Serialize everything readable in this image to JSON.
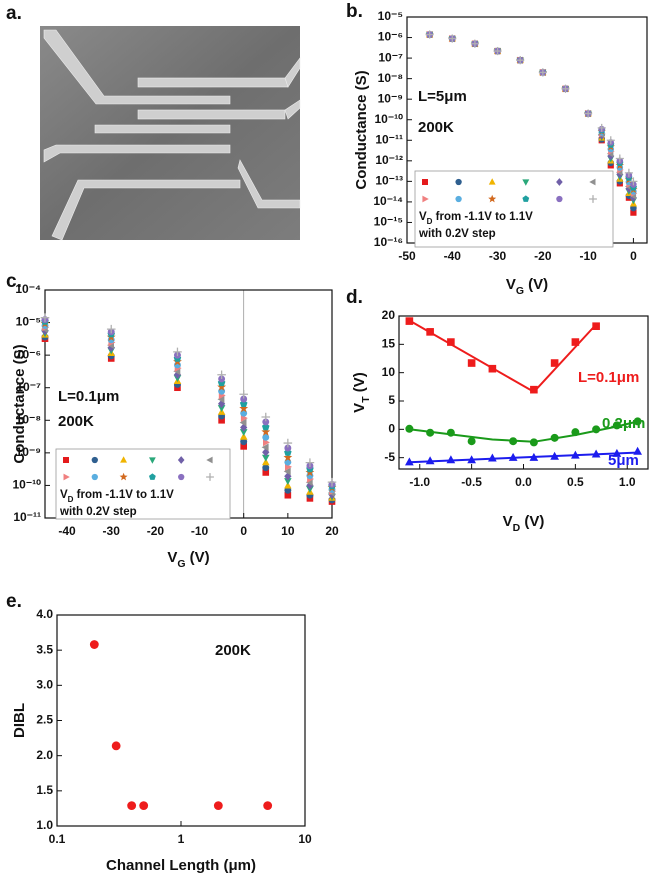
{
  "chart_data": [
    {
      "type": "image",
      "panel_label": "a."
    },
    {
      "type": "scatter",
      "panel_label": "b.",
      "ylog": true,
      "xlabel": [
        "V",
        "G",
        " (V)"
      ],
      "ylabel": "Conductance (S)",
      "xlim": [
        -50,
        3
      ],
      "ylim": [
        1e-16,
        1e-05
      ],
      "xticks": [
        -50,
        -40,
        -30,
        -20,
        -10,
        0
      ],
      "yticks": [
        {
          "value": 1e-16,
          "label": "10⁻¹⁶"
        },
        {
          "value": 1e-15,
          "label": "10⁻¹⁵"
        },
        {
          "value": 1e-14,
          "label": "10⁻¹⁴"
        },
        {
          "value": 1e-13,
          "label": "10⁻¹³"
        },
        {
          "value": 1e-12,
          "label": "10⁻¹²"
        },
        {
          "value": 1e-11,
          "label": "10⁻¹¹"
        },
        {
          "value": 1e-10,
          "label": "10⁻¹⁰"
        },
        {
          "value": 1e-09,
          "label": "10⁻⁹"
        },
        {
          "value": 1e-08,
          "label": "10⁻⁸"
        },
        {
          "value": 1e-07,
          "label": "10⁻⁷"
        },
        {
          "value": 1e-06,
          "label": "10⁻⁶"
        },
        {
          "value": 1e-05,
          "label": "10⁻⁵"
        }
      ],
      "annotations": [
        "L=5μm",
        "200K"
      ],
      "legend_text": [
        [
          "V",
          "D",
          " from -1.1V to 1.1V"
        ],
        "with 0.2V step"
      ],
      "x": [
        -45,
        -40,
        -35,
        -30,
        -25,
        -20,
        -15,
        -10,
        -7,
        -5,
        -3,
        -1,
        0
      ],
      "series": [
        {
          "color": "#e41a1c",
          "marker": "square",
          "values": [
            1.4e-06,
            8.9e-07,
            5e-07,
            2.2e-07,
            7.9e-08,
            2e-08,
            3.2e-09,
            2e-10,
            1e-11,
            6e-13,
            8e-14,
            1.6e-14,
            3e-15
          ]
        },
        {
          "color": "#2f5f8f",
          "marker": "circle",
          "values": [
            1.4e-06,
            8.9e-07,
            5e-07,
            2.2e-07,
            7.9e-08,
            2e-08,
            3.2e-09,
            2e-10,
            1.1e-11,
            8e-13,
            1e-13,
            2e-14,
            5e-15
          ]
        },
        {
          "color": "#f0b400",
          "marker": "triangle-up",
          "values": [
            1.4e-06,
            8.9e-07,
            5e-07,
            2.2e-07,
            7.9e-08,
            2e-08,
            3.2e-09,
            2e-10,
            1.3e-11,
            1e-12,
            1.3e-13,
            2.6e-14,
            8e-15
          ]
        },
        {
          "color": "#2aa87a",
          "marker": "triangle-down",
          "values": [
            1.4e-06,
            8.9e-07,
            5e-07,
            2.2e-07,
            7.9e-08,
            2e-08,
            3.2e-09,
            2e-10,
            1.5e-11,
            1.3e-12,
            1.7e-13,
            3.4e-14,
            1.2e-14
          ]
        },
        {
          "color": "#7060a8",
          "marker": "diamond",
          "values": [
            1.4e-06,
            8.9e-07,
            5e-07,
            2.2e-07,
            7.9e-08,
            2e-08,
            3.2e-09,
            2e-10,
            1.7e-11,
            1.7e-12,
            2.2e-13,
            4.4e-14,
            1.6e-14
          ]
        },
        {
          "color": "#909090",
          "marker": "triangle-left",
          "values": [
            1.4e-06,
            8.9e-07,
            5e-07,
            2.2e-07,
            7.9e-08,
            2e-08,
            3.2e-09,
            2e-10,
            1.9e-11,
            2.2e-12,
            2.8e-13,
            5.6e-14,
            2e-14
          ]
        },
        {
          "color": "#f08080",
          "marker": "triangle-right",
          "values": [
            1.4e-06,
            8.9e-07,
            5e-07,
            2.2e-07,
            7.9e-08,
            2e-08,
            3.2e-09,
            2e-10,
            2.1e-11,
            2.9e-12,
            3.6e-13,
            7.2e-14,
            2.6e-14
          ]
        },
        {
          "color": "#5aaee0",
          "marker": "circle",
          "values": [
            1.4e-06,
            8.9e-07,
            5e-07,
            2.2e-07,
            7.9e-08,
            2e-08,
            3.2e-09,
            2e-10,
            2.4e-11,
            3.7e-12,
            4.7e-13,
            9.3e-14,
            3.2e-14
          ]
        },
        {
          "color": "#d2691e",
          "marker": "star",
          "values": [
            1.4e-06,
            8.9e-07,
            5e-07,
            2.2e-07,
            7.9e-08,
            2e-08,
            3.2e-09,
            2e-10,
            2.7e-11,
            4.8e-12,
            6e-13,
            1.2e-13,
            4e-14
          ]
        },
        {
          "color": "#20a0a0",
          "marker": "pentagon",
          "values": [
            1.4e-06,
            8.9e-07,
            5e-07,
            2.2e-07,
            7.9e-08,
            2e-08,
            3.2e-09,
            2e-10,
            3.1e-11,
            6.1e-12,
            7.8e-13,
            1.5e-13,
            5e-14
          ]
        },
        {
          "color": "#8a70c0",
          "marker": "circle",
          "values": [
            1.4e-06,
            8.9e-07,
            5e-07,
            2.2e-07,
            7.9e-08,
            2e-08,
            3.2e-09,
            2e-10,
            3.5e-11,
            7.9e-12,
            1e-12,
            2e-13,
            7e-14
          ]
        },
        {
          "color": "#b0b0b0",
          "marker": "plus",
          "values": [
            1.4e-06,
            8.9e-07,
            5e-07,
            2.2e-07,
            7.9e-08,
            2e-08,
            3.2e-09,
            2e-10,
            4e-11,
            1e-11,
            1.3e-12,
            2.6e-13,
            1e-13
          ]
        }
      ]
    },
    {
      "type": "scatter",
      "panel_label": "c.",
      "ylog": true,
      "zero_line": true,
      "xlabel": [
        "V",
        "G",
        " (V)"
      ],
      "ylabel": "Conductance (S)",
      "xlim": [
        -45,
        20
      ],
      "ylim": [
        1e-11,
        0.0001
      ],
      "xticks": [
        -40,
        -30,
        -20,
        -10,
        0,
        10,
        20
      ],
      "yticks": [
        {
          "value": 1e-11,
          "label": "10⁻¹¹"
        },
        {
          "value": 1e-10,
          "label": "10⁻¹⁰"
        },
        {
          "value": 1e-09,
          "label": "10⁻⁹"
        },
        {
          "value": 1e-08,
          "label": "10⁻⁸"
        },
        {
          "value": 1e-07,
          "label": "10⁻⁷"
        },
        {
          "value": 1e-06,
          "label": "10⁻⁶"
        },
        {
          "value": 1e-05,
          "label": "10⁻⁵"
        },
        {
          "value": 0.0001,
          "label": "10⁻⁴"
        }
      ],
      "annotations": [
        "L=0.1μm",
        "200K"
      ],
      "legend_text": [
        [
          "V",
          "D",
          " from -1.1V to 1.1V"
        ],
        "with 0.2V step"
      ],
      "x": [
        -45,
        -30,
        -15,
        -5,
        0,
        5,
        10,
        15,
        20
      ],
      "series": [
        {
          "color": "#e41a1c",
          "marker": "square",
          "values": [
            3.2e-06,
            7.9e-07,
            1e-07,
            1e-08,
            1.58e-09,
            2.5e-10,
            5e-11,
            4e-11,
            3.2e-11
          ]
        },
        {
          "color": "#2f5f8f",
          "marker": "circle",
          "values": [
            3.6e-06,
            9.5e-07,
            1.26e-07,
            1.35e-08,
            2.2e-09,
            3.5e-10,
            7.1e-11,
            5e-11,
            3.6e-11
          ]
        },
        {
          "color": "#f0b400",
          "marker": "triangle-up",
          "values": [
            4.2e-06,
            1.15e-06,
            1.58e-07,
            1.78e-08,
            3.1e-09,
            5.1e-10,
            9.8e-11,
            6.3e-11,
            4.1e-11
          ]
        },
        {
          "color": "#2aa87a",
          "marker": "triangle-down",
          "values": [
            4.8e-06,
            1.41e-06,
            2e-07,
            2.4e-08,
            4.4e-09,
            7.2e-10,
            1.38e-10,
            7.9e-11,
            4.6e-11
          ]
        },
        {
          "color": "#7060a8",
          "marker": "diamond",
          "values": [
            5.5e-06,
            1.7e-06,
            2.5e-07,
            3.2e-08,
            6e-09,
            1.05e-09,
            1.9e-10,
            1e-10,
            5.2e-11
          ]
        },
        {
          "color": "#909090",
          "marker": "triangle-left",
          "values": [
            6.3e-06,
            2.04e-06,
            3.2e-07,
            4.4e-08,
            8.5e-09,
            1.48e-09,
            2.7e-10,
            1.26e-10,
            5.9e-11
          ]
        },
        {
          "color": "#f08080",
          "marker": "triangle-right",
          "values": [
            7.1e-06,
            2.45e-06,
            4e-07,
            5.8e-08,
            1.17e-08,
            2.1e-09,
            3.7e-10,
            1.58e-10,
            6.6e-11
          ]
        },
        {
          "color": "#5aaee0",
          "marker": "circle",
          "values": [
            8.1e-06,
            2.95e-06,
            5e-07,
            7.8e-08,
            1.66e-08,
            3e-09,
            5.2e-10,
            2e-10,
            7.5e-11
          ]
        },
        {
          "color": "#d2691e",
          "marker": "star",
          "values": [
            9.3e-06,
            3.55e-06,
            6.3e-07,
            1.05e-07,
            2.3e-08,
            4.4e-09,
            7.2e-10,
            2.5e-10,
            8.5e-11
          ]
        },
        {
          "color": "#20a0a0",
          "marker": "pentagon",
          "values": [
            1.07e-05,
            4.4e-06,
            7.9e-07,
            1.41e-07,
            3.2e-08,
            6.2e-09,
            1.02e-09,
            3.2e-10,
            9.6e-11
          ]
        },
        {
          "color": "#8a70c0",
          "marker": "circle",
          "values": [
            1.23e-05,
            5.2e-06,
            1e-06,
            1.86e-07,
            4.5e-08,
            8.9e-09,
            1.41e-09,
            4e-10,
            1.08e-10
          ]
        },
        {
          "color": "#b0b0b0",
          "marker": "plus",
          "values": [
            1.41e-05,
            6.3e-06,
            1.26e-06,
            2.5e-07,
            6.3e-08,
            1.26e-08,
            2e-09,
            5e-10,
            1.26e-10
          ]
        }
      ]
    },
    {
      "type": "scatter",
      "panel_label": "d.",
      "xlabel": [
        "V",
        "D",
        " (V)"
      ],
      "ylabel": [
        "V",
        "T",
        " (V)"
      ],
      "xlim": [
        -1.2,
        1.2
      ],
      "ylim": [
        -7,
        20
      ],
      "xticks": [
        {
          "value": -1.0,
          "label": "-1.0"
        },
        {
          "value": -0.5,
          "label": "-0.5"
        },
        {
          "value": 0.0,
          "label": "0.0"
        },
        {
          "value": 0.5,
          "label": "0.5"
        },
        {
          "value": 1.0,
          "label": "1.0"
        }
      ],
      "yticks": [
        -5,
        0,
        5,
        10,
        15,
        20
      ],
      "series": [
        {
          "name": "L=0.1μm",
          "color": "#ee1c1c",
          "marker": "square",
          "x": [
            -1.1,
            -0.9,
            -0.7,
            -0.5,
            -0.3,
            0.1,
            0.3,
            0.5,
            0.7
          ],
          "values": [
            19.1,
            17.2,
            15.4,
            11.7,
            10.7,
            7.0,
            11.7,
            15.4,
            18.2
          ],
          "fit": {
            "x": [
              -1.1,
              0.1,
              0.7
            ],
            "values": [
              19.2,
              6.6,
              18.5
            ]
          }
        },
        {
          "name": "0.2μm",
          "color": "#1a9a1a",
          "marker": "circle",
          "x": [
            -1.1,
            -0.9,
            -0.7,
            -0.5,
            -0.1,
            0.1,
            0.3,
            0.5,
            0.7,
            0.9,
            1.1
          ],
          "values": [
            0.1,
            -0.6,
            -0.6,
            -2.1,
            -2.1,
            -2.3,
            -1.5,
            -0.5,
            0.0,
            0.7,
            1.4
          ],
          "fit": {
            "x": [
              -1.1,
              -0.7,
              -0.3,
              0.1,
              0.5,
              0.9,
              1.1
            ],
            "values": [
              0.0,
              -0.9,
              -1.8,
              -2.2,
              -1.0,
              0.5,
              1.4
            ]
          }
        },
        {
          "name": "5μm",
          "color": "#1c1cee",
          "marker": "triangle-up",
          "x": [
            -1.1,
            -0.9,
            -0.7,
            -0.5,
            -0.3,
            -0.1,
            0.1,
            0.3,
            0.5,
            0.7,
            0.9,
            1.1
          ],
          "values": [
            -5.8,
            -5.6,
            -5.4,
            -5.4,
            -5.1,
            -5.0,
            -5.0,
            -4.8,
            -4.6,
            -4.4,
            -4.3,
            -3.9
          ],
          "fit": {
            "x": [
              -1.1,
              1.1
            ],
            "values": [
              -5.8,
              -4.1
            ]
          }
        }
      ]
    },
    {
      "type": "scatter",
      "panel_label": "e.",
      "xlog": true,
      "xlabel": "Channel Length (μm)",
      "ylabel": "DIBL",
      "xlim": [
        0.1,
        10
      ],
      "ylim": [
        1.0,
        4.0
      ],
      "xticks": [
        0.1,
        1,
        10
      ],
      "yticks": [
        {
          "value": 1.0,
          "label": "1.0"
        },
        {
          "value": 1.5,
          "label": "1.5"
        },
        {
          "value": 2.0,
          "label": "2.0"
        },
        {
          "value": 2.5,
          "label": "2.5"
        },
        {
          "value": 3.0,
          "label": "3.0"
        },
        {
          "value": 3.5,
          "label": "3.5"
        },
        {
          "value": 4.0,
          "label": "4.0"
        }
      ],
      "annotations": [
        "200K"
      ],
      "series": [
        {
          "color": "#ee1c1c",
          "marker": "circle",
          "x": [
            0.2,
            0.3,
            0.4,
            0.5,
            2,
            5
          ],
          "values": [
            3.58,
            2.14,
            1.29,
            1.29,
            1.29,
            1.29
          ]
        }
      ]
    }
  ]
}
